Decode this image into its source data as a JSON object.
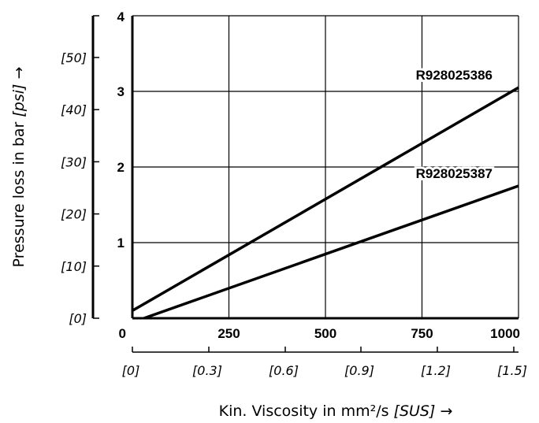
{
  "chart_data": {
    "type": "line",
    "xlabel": {
      "main": "Kin. Viscosity in mm²/s ",
      "italic": "[SUS]",
      "arrow": " →"
    },
    "ylabel": {
      "main": "Pressure loss in bar ",
      "italic": "[psi]",
      "arrow": " →"
    },
    "xlim": [
      0,
      1000
    ],
    "ylim": [
      0,
      4
    ],
    "grid": true,
    "x_ticks": [
      "0",
      "250",
      "500",
      "750",
      "1000"
    ],
    "y_ticks": [
      "0",
      "1",
      "2",
      "3",
      "4"
    ],
    "x_secondary_ticks": [
      "[0]",
      "[0.3]",
      "[0.6]",
      "[0.9]",
      "[1.2]",
      "[1.5]"
    ],
    "y_secondary_ticks": [
      "[0]",
      "[10]",
      "[20]",
      "[30]",
      "[40]",
      "[50]"
    ],
    "y_secondary_max": 58,
    "series": [
      {
        "name": "R928025386",
        "x": [
          0,
          1000
        ],
        "y": [
          0.1,
          3.05
        ]
      },
      {
        "name": "R928025387",
        "x": [
          30,
          1000
        ],
        "y": [
          0.0,
          1.75
        ]
      }
    ]
  }
}
